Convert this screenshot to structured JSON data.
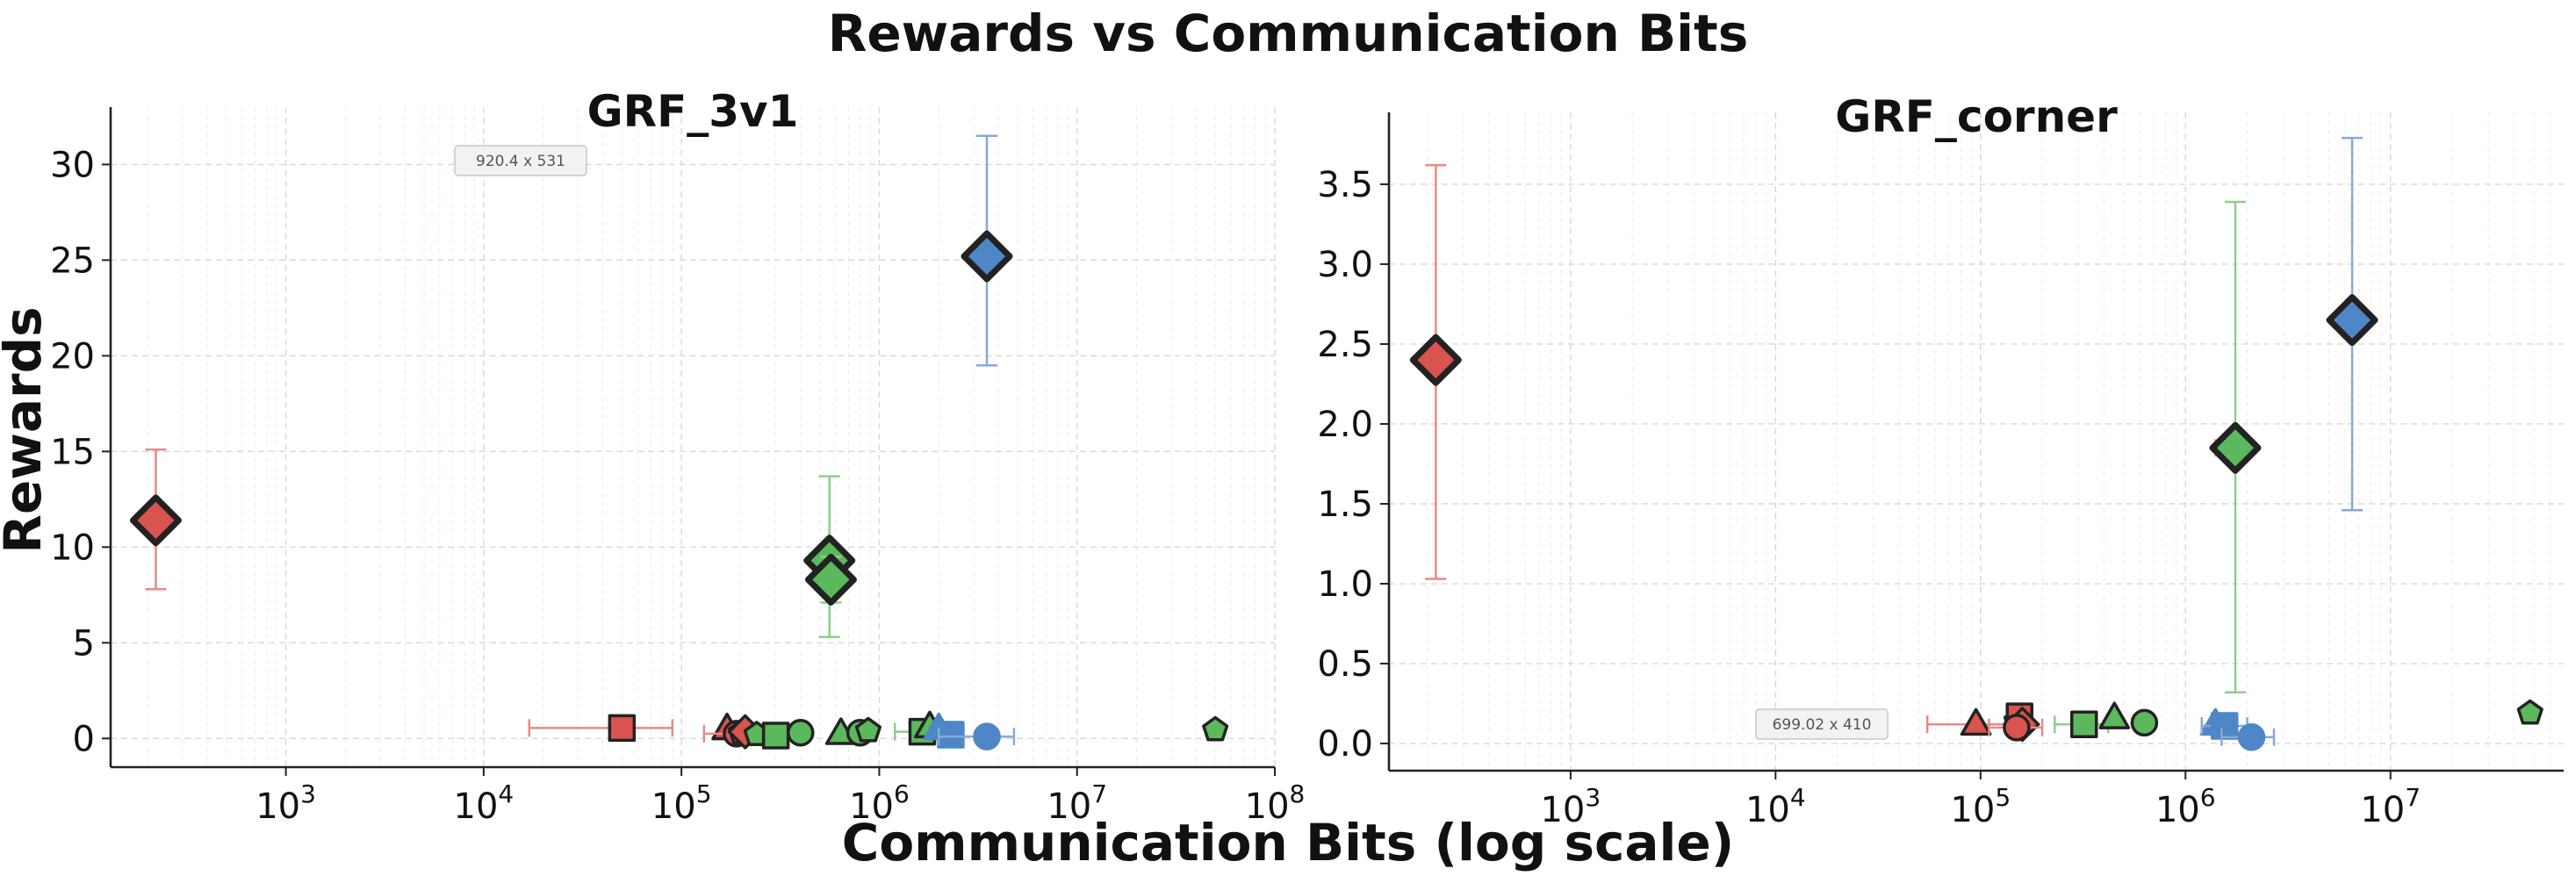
{
  "chart_data": [
    {
      "type": "scatter",
      "title": "GRF_3v1",
      "x_scale": "log",
      "xlim": [
        130,
        100000000
      ],
      "ylim": [
        -1.5,
        33
      ],
      "x_ticks": [
        {
          "value": 1000,
          "base": "10",
          "exp": "3"
        },
        {
          "value": 10000,
          "base": "10",
          "exp": "4"
        },
        {
          "value": 100000,
          "base": "10",
          "exp": "5"
        },
        {
          "value": 1000000,
          "base": "10",
          "exp": "6"
        },
        {
          "value": 10000000,
          "base": "10",
          "exp": "7"
        },
        {
          "value": 100000000,
          "base": "10",
          "exp": "8"
        }
      ],
      "y_ticks": [
        {
          "value": 0,
          "label": "0"
        },
        {
          "value": 5,
          "label": "5"
        },
        {
          "value": 10,
          "label": "10"
        },
        {
          "value": 15,
          "label": "15"
        },
        {
          "value": 20,
          "label": "20"
        },
        {
          "value": 25,
          "label": "25"
        },
        {
          "value": 30,
          "label": "30"
        }
      ],
      "grid": true,
      "annotation": "920.4 x 531",
      "points": [
        {
          "x": 220,
          "y": 11.4,
          "err_low": 7.8,
          "err_high": 15.1,
          "color": "red",
          "marker": "diamond",
          "highlight": true
        },
        {
          "x": 3500000,
          "y": 25.2,
          "err_low": 19.5,
          "err_high": 31.5,
          "color": "blue",
          "marker": "diamond",
          "highlight": true
        },
        {
          "x": 560000,
          "y": 9.3,
          "err_low": 5.3,
          "err_high": 13.7,
          "color": "green",
          "marker": "diamond",
          "highlight": true
        },
        {
          "x": 570000,
          "y": 8.3,
          "err_low": 7.1,
          "err_high": 9.5,
          "color": "green",
          "marker": "diamond",
          "highlight": true
        },
        {
          "x": 50000,
          "y": 0.55,
          "xerr_low": 17000,
          "xerr_high": 90000,
          "color": "red",
          "marker": "square"
        },
        {
          "x": 170000,
          "y": 0.5,
          "color": "red",
          "marker": "triangle"
        },
        {
          "x": 190000,
          "y": 0.25,
          "xerr_low": 130000,
          "xerr_high": 260000,
          "color": "red",
          "marker": "circle"
        },
        {
          "x": 200000,
          "y": 0.3,
          "color": "red",
          "marker": "pentagon"
        },
        {
          "x": 210000,
          "y": 0.35,
          "color": "red",
          "marker": "diamond"
        },
        {
          "x": 240000,
          "y": 0.2,
          "color": "green",
          "marker": "pentagon"
        },
        {
          "x": 300000,
          "y": 0.15,
          "color": "green",
          "marker": "square"
        },
        {
          "x": 400000,
          "y": 0.3,
          "color": "green",
          "marker": "circle"
        },
        {
          "x": 640000,
          "y": 0.25,
          "color": "green",
          "marker": "triangle"
        },
        {
          "x": 800000,
          "y": 0.3,
          "color": "green",
          "marker": "circle"
        },
        {
          "x": 880000,
          "y": 0.4,
          "color": "green",
          "marker": "pentagon"
        },
        {
          "x": 1650000,
          "y": 0.35,
          "xerr_low": 1200000,
          "xerr_high": 2000000,
          "color": "green",
          "marker": "square"
        },
        {
          "x": 1800000,
          "y": 0.6,
          "color": "green",
          "marker": "triangle"
        },
        {
          "x": 2000000,
          "y": 0.5,
          "color": "blue",
          "marker": "triangle"
        },
        {
          "x": 2300000,
          "y": 0.2,
          "color": "blue",
          "marker": "square"
        },
        {
          "x": 3500000,
          "y": 0.1,
          "xerr_low": 2000000,
          "xerr_high": 4800000,
          "color": "blue",
          "marker": "circle"
        },
        {
          "x": 50000000,
          "y": 0.45,
          "color": "green",
          "marker": "pentagon"
        }
      ]
    },
    {
      "type": "scatter",
      "title": "GRF_corner",
      "x_scale": "log",
      "xlim": [
        130,
        70000000
      ],
      "ylim": [
        -0.17,
        3.95
      ],
      "x_ticks": [
        {
          "value": 1000,
          "base": "10",
          "exp": "3"
        },
        {
          "value": 10000,
          "base": "10",
          "exp": "4"
        },
        {
          "value": 100000,
          "base": "10",
          "exp": "5"
        },
        {
          "value": 1000000,
          "base": "10",
          "exp": "6"
        },
        {
          "value": 10000000,
          "base": "10",
          "exp": "7"
        }
      ],
      "y_ticks": [
        {
          "value": 0,
          "label": "0.0"
        },
        {
          "value": 0.5,
          "label": "0.5"
        },
        {
          "value": 1.0,
          "label": "1.0"
        },
        {
          "value": 1.5,
          "label": "1.5"
        },
        {
          "value": 2.0,
          "label": "2.0"
        },
        {
          "value": 2.5,
          "label": "2.5"
        },
        {
          "value": 3.0,
          "label": "3.0"
        },
        {
          "value": 3.5,
          "label": "3.5"
        }
      ],
      "grid": true,
      "annotation": "699.02 x 410",
      "points": [
        {
          "x": 220,
          "y": 2.4,
          "err_low": 1.03,
          "err_high": 3.62,
          "color": "red",
          "marker": "diamond",
          "highlight": true
        },
        {
          "x": 6500000,
          "y": 2.65,
          "err_low": 1.46,
          "err_high": 3.79,
          "xerr_low": 5800000,
          "xerr_high": 7200000,
          "color": "blue",
          "marker": "diamond",
          "highlight": true
        },
        {
          "x": 1750000,
          "y": 1.85,
          "err_low": 0.32,
          "err_high": 3.39,
          "xerr_low": 1400000,
          "xerr_high": 2100000,
          "color": "green",
          "marker": "diamond",
          "highlight": true
        },
        {
          "x": 95000,
          "y": 0.12,
          "xerr_low": 55000,
          "xerr_high": 140000,
          "color": "red",
          "marker": "triangle"
        },
        {
          "x": 150000,
          "y": 0.14,
          "color": "red",
          "marker": "pentagon"
        },
        {
          "x": 155000,
          "y": 0.17,
          "color": "red",
          "marker": "square"
        },
        {
          "x": 160000,
          "y": 0.12,
          "color": "red",
          "marker": "diamond"
        },
        {
          "x": 150000,
          "y": 0.1,
          "xerr_low": 110000,
          "xerr_high": 200000,
          "color": "red",
          "marker": "circle"
        },
        {
          "x": 320000,
          "y": 0.12,
          "xerr_low": 230000,
          "xerr_high": 420000,
          "color": "green",
          "marker": "square"
        },
        {
          "x": 450000,
          "y": 0.16,
          "color": "green",
          "marker": "triangle"
        },
        {
          "x": 630000,
          "y": 0.13,
          "color": "green",
          "marker": "circle"
        },
        {
          "x": 1400000,
          "y": 0.12,
          "color": "blue",
          "marker": "triangle"
        },
        {
          "x": 1550000,
          "y": 0.11,
          "xerr_low": 1200000,
          "xerr_high": 2000000,
          "color": "blue",
          "marker": "square"
        },
        {
          "x": 2100000,
          "y": 0.04,
          "xerr_low": 1500000,
          "xerr_high": 2700000,
          "color": "blue",
          "marker": "circle"
        },
        {
          "x": 48000000,
          "y": 0.19,
          "color": "green",
          "marker": "pentagon"
        }
      ]
    }
  ],
  "figure": {
    "suptitle": "Rewards vs Communication Bits",
    "xlabel": "Communication Bits (log scale)",
    "ylabel": "Rewards"
  },
  "colors": {
    "red": "#d9534f",
    "green": "#5cb85c",
    "blue": "#4f86c6",
    "red_err": "#e58b87",
    "green_err": "#8fcc8c",
    "blue_err": "#86aad6"
  }
}
